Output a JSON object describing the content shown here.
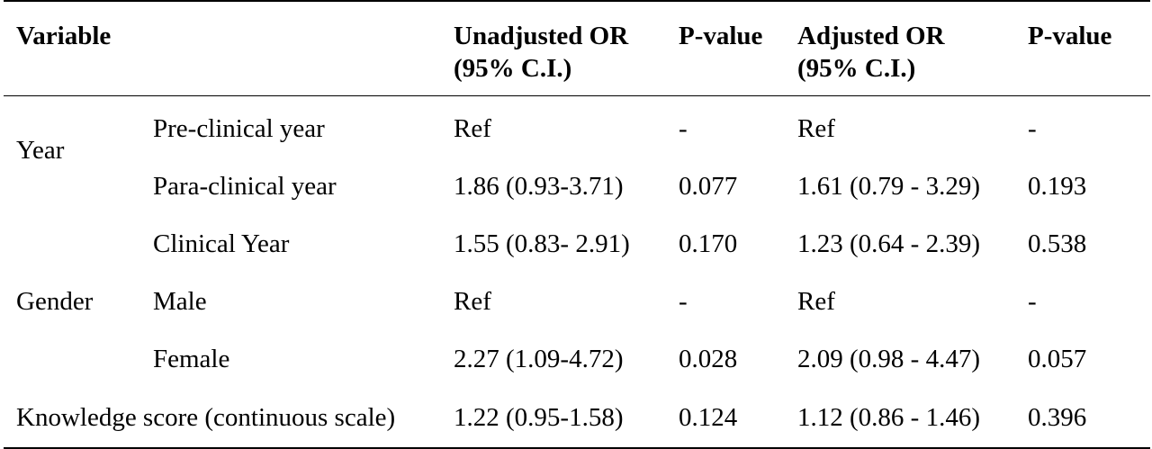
{
  "headers": {
    "variable": "Variable",
    "unadjusted_or_line1": "Unadjusted OR",
    "unadjusted_or_line2": "(95% C.I.)",
    "p_value_1": "P-value",
    "adjusted_or_line1": "Adjusted OR",
    "adjusted_or_line2": "(95% C.I.)",
    "p_value_2": "P-value"
  },
  "rows": [
    {
      "group": "",
      "sub": "Pre-clinical year",
      "unadjusted_or": "Ref",
      "p1": "-",
      "adjusted_or": "Ref",
      "p2": "-"
    },
    {
      "group": "Year",
      "sub": "Para-clinical year",
      "unadjusted_or": "1.86 (0.93-3.71)",
      "p1": "0.077",
      "adjusted_or": "1.61 (0.79 - 3.29)",
      "p2": "0.193"
    },
    {
      "group": "",
      "sub": "Clinical Year",
      "unadjusted_or": "1.55 (0.83- 2.91)",
      "p1": "0.170",
      "adjusted_or": "1.23 (0.64 - 2.39)",
      "p2": "0.538"
    },
    {
      "group": "Gender",
      "sub": "Male",
      "unadjusted_or": "Ref",
      "p1": "-",
      "adjusted_or": "Ref",
      "p2": "-"
    },
    {
      "group": "",
      "sub": "Female",
      "unadjusted_or": "2.27 (1.09-4.72)",
      "p1": "0.028",
      "adjusted_or": "2.09 (0.98 - 4.47)",
      "p2": "0.057"
    }
  ],
  "knowledge_row": {
    "label": "Knowledge score (continuous scale)",
    "unadjusted_or": "1.22 (0.95-1.58)",
    "p1": "0.124",
    "adjusted_or": "1.12 (0.86 - 1.46)",
    "p2": "0.396"
  }
}
